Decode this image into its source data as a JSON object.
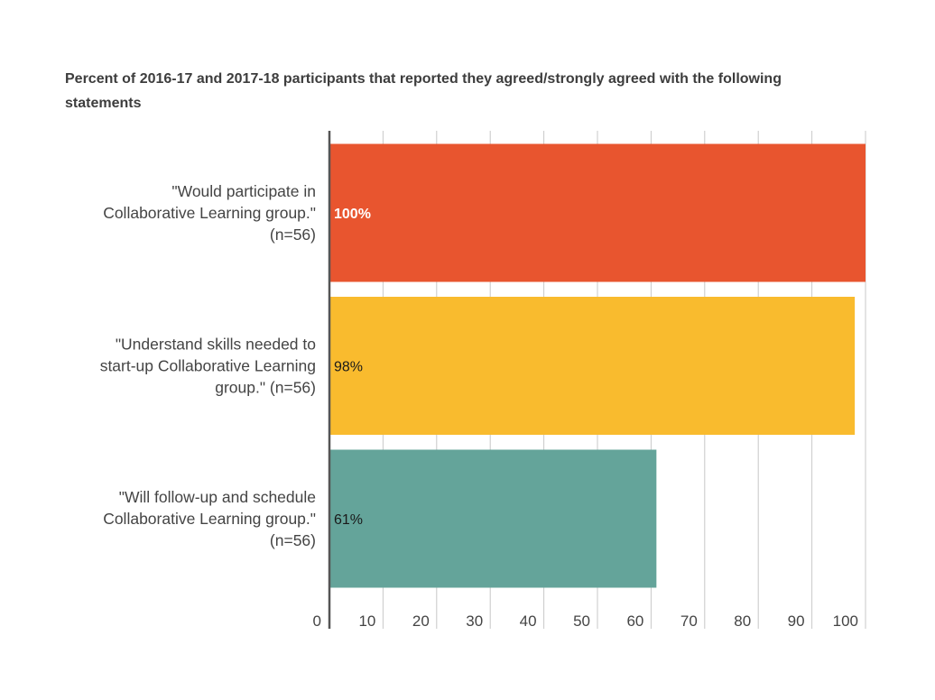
{
  "chart_data": {
    "type": "bar",
    "orientation": "horizontal",
    "title": "Percent of 2016-17 and 2017-18  participants that reported they agreed/strongly agreed with the following statements",
    "categories": [
      "\"Would participate in Collaborative Learning group.\" (n=56)",
      "\"Understand skills needed to start-up Collaborative Learning group.\" (n=56)",
      "\"Will follow-up and schedule Collaborative Learning group.\" (n=56)"
    ],
    "category_lines": [
      [
        "\"Would participate in",
        "Collaborative Learning group.\"",
        "(n=56)"
      ],
      [
        "\"Understand skills needed to",
        "start-up Collaborative Learning",
        "group.\" (n=56)"
      ],
      [
        "\"Will follow-up and schedule",
        "Collaborative Learning group.\"",
        "(n=56)"
      ]
    ],
    "values": [
      100,
      98,
      61
    ],
    "data_labels": [
      "100%",
      "98%",
      "61%"
    ],
    "colors": [
      "#e8552f",
      "#f9bb2e",
      "#64a49a"
    ],
    "label_colors": [
      "#ffffff",
      "#1a1a1a",
      "#1a1a1a"
    ],
    "xlim": [
      0,
      100
    ],
    "ticks": [
      0,
      10,
      20,
      30,
      40,
      50,
      60,
      70,
      80,
      90,
      100
    ],
    "tick_labels": [
      "0",
      "10",
      "20",
      "30",
      "40",
      "50",
      "60",
      "70",
      "80",
      "90",
      "100"
    ],
    "xlabel": "",
    "ylabel": "",
    "grid": true,
    "legend": "none"
  }
}
